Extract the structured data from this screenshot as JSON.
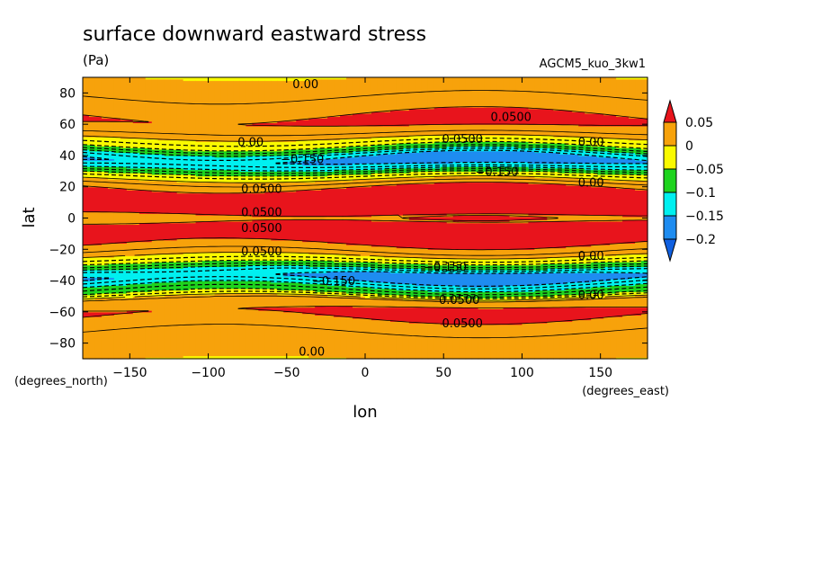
{
  "chart_data": {
    "type": "heatmap",
    "subtype": "filled-contour",
    "title": "surface downward eastward stress",
    "units": "(Pa)",
    "run_label": "AGCM5_kuo_3kw1",
    "xlabel": "lon",
    "ylabel": "lat",
    "x_units": "(degrees_east)",
    "y_units": "(degrees_north)",
    "xlim": [
      -180,
      180
    ],
    "ylim": [
      -90,
      90
    ],
    "x_ticks": [
      -150,
      -100,
      -50,
      0,
      50,
      100,
      150
    ],
    "y_ticks": [
      -80,
      -60,
      -40,
      -20,
      0,
      20,
      40,
      60,
      80
    ],
    "x_tick_labels": [
      "−150",
      "−100",
      "−50",
      "0",
      "50",
      "100",
      "150"
    ],
    "y_tick_labels": [
      "−80",
      "−60",
      "−40",
      "−20",
      "0",
      "20",
      "40",
      "60",
      "80"
    ],
    "levels": [
      -0.2,
      -0.15,
      -0.1,
      -0.05,
      0,
      0.05
    ],
    "colorbar": {
      "labels": [
        "0.05",
        "0",
        "−0.05",
        "−0.1",
        "−0.15",
        "−0.2"
      ],
      "colors": [
        "#e8141c",
        "#f7a20b",
        "#fafa00",
        "#1ed41e",
        "#00f0f0",
        "#1e8cf0",
        "#1060e0"
      ]
    },
    "colors": {
      "above_005": "#e8141c",
      "0_to_005": "#f7a20b",
      "m005_to_0": "#fafa00",
      "m01_to_m005": "#1ed41e",
      "m015_to_m01": "#00f0f0",
      "m02_to_m015": "#1e8cf0"
    },
    "contour_labels": [
      {
        "text": "0.00",
        "lon": -38,
        "lat": 86
      },
      {
        "text": "0.0500",
        "lon": 93,
        "lat": 65
      },
      {
        "text": "0.0500",
        "lon": 62,
        "lat": 51
      },
      {
        "text": "0.00",
        "lon": -73,
        "lat": 49
      },
      {
        "text": "0.00",
        "lon": 144,
        "lat": 49
      },
      {
        "text": "−0.150",
        "lon": -40,
        "lat": 38
      },
      {
        "text": "−0.150",
        "lon": 84,
        "lat": 30
      },
      {
        "text": "0.00",
        "lon": 144,
        "lat": 23
      },
      {
        "text": "0.0500",
        "lon": -66,
        "lat": 19
      },
      {
        "text": "0.0500",
        "lon": -66,
        "lat": 4
      },
      {
        "text": "0.0500",
        "lon": -66,
        "lat": -6
      },
      {
        "text": "0.0500",
        "lon": -66,
        "lat": -21
      },
      {
        "text": "0.00",
        "lon": 144,
        "lat": -24
      },
      {
        "text": "−0.150",
        "lon": 51,
        "lat": -31
      },
      {
        "text": "−0.150",
        "lon": -20,
        "lat": -40
      },
      {
        "text": "0.00",
        "lon": 144,
        "lat": -49
      },
      {
        "text": "0.0500",
        "lon": 60,
        "lat": -52
      },
      {
        "text": "0.0500",
        "lon": 62,
        "lat": -67
      },
      {
        "text": "0.00",
        "lon": -34,
        "lat": -85
      }
    ],
    "zonal_profile": [
      {
        "lat": -90,
        "value": 0.0
      },
      {
        "lat": -80,
        "value": 0.01
      },
      {
        "lat": -70,
        "value": 0.03
      },
      {
        "lat": -60,
        "value": 0.06
      },
      {
        "lat": -52,
        "value": 0.03
      },
      {
        "lat": -48,
        "value": -0.05
      },
      {
        "lat": -42,
        "value": -0.12
      },
      {
        "lat": -38,
        "value": -0.17
      },
      {
        "lat": -34,
        "value": -0.14
      },
      {
        "lat": -30,
        "value": -0.07
      },
      {
        "lat": -26,
        "value": -0.02
      },
      {
        "lat": -22,
        "value": 0.02
      },
      {
        "lat": -15,
        "value": 0.06
      },
      {
        "lat": -8,
        "value": 0.08
      },
      {
        "lat": 0,
        "value": 0.04
      },
      {
        "lat": 6,
        "value": 0.07
      },
      {
        "lat": 14,
        "value": 0.08
      },
      {
        "lat": 20,
        "value": 0.05
      },
      {
        "lat": 24,
        "value": 0.01
      },
      {
        "lat": 28,
        "value": -0.04
      },
      {
        "lat": 32,
        "value": -0.11
      },
      {
        "lat": 37,
        "value": -0.17
      },
      {
        "lat": 41,
        "value": -0.13
      },
      {
        "lat": 45,
        "value": -0.06
      },
      {
        "lat": 50,
        "value": -0.01
      },
      {
        "lat": 55,
        "value": 0.03
      },
      {
        "lat": 62,
        "value": 0.06
      },
      {
        "lat": 70,
        "value": 0.04
      },
      {
        "lat": 80,
        "value": 0.02
      },
      {
        "lat": 90,
        "value": 0.0
      }
    ]
  }
}
